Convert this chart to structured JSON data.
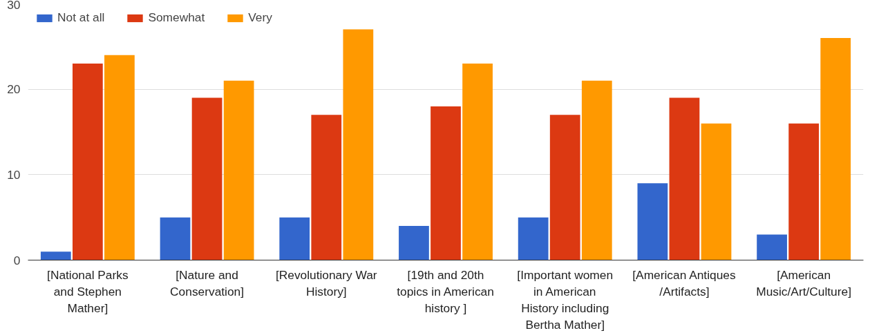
{
  "chart_data": {
    "type": "bar",
    "categories": [
      "[National Parks and Stephen Mather]",
      "[Nature and Conservation]",
      "[Revolutionary War History]",
      "[19th and 20th topics in American history ]",
      "[Important women in American History including Bertha Mather]",
      "[American Antiques/Artifacts]",
      "[American Music/Art/Culture]"
    ],
    "series": [
      {
        "name": "Not at all",
        "color": "#3366cc",
        "values": [
          1,
          5,
          5,
          4,
          5,
          9,
          3
        ]
      },
      {
        "name": "Somewhat",
        "color": "#dc3912",
        "values": [
          23,
          19,
          17,
          18,
          17,
          19,
          16
        ]
      },
      {
        "name": "Very",
        "color": "#ff9900",
        "values": [
          24,
          21,
          27,
          23,
          21,
          16,
          26
        ]
      }
    ],
    "ylim": [
      0,
      30
    ],
    "yticks": [
      0,
      10,
      20,
      30
    ],
    "grid": "y",
    "legend": "top left"
  }
}
